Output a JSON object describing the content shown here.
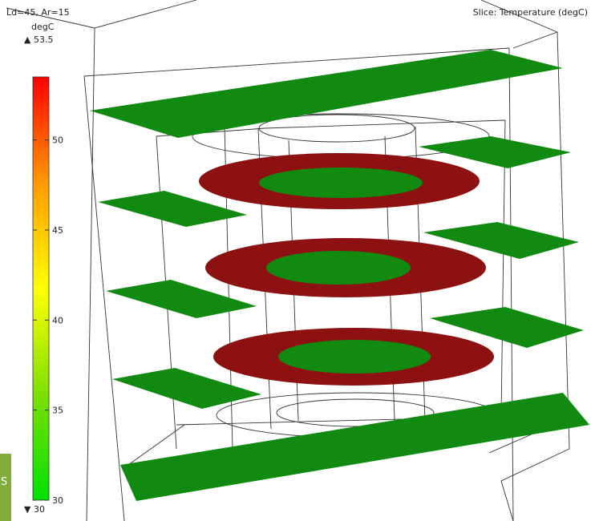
{
  "header": {
    "params": "Ld=45, Ar=15",
    "slice_title": "Slice: Temperature (degC)"
  },
  "colorbar": {
    "unit": "degC",
    "max_label": "▲ 53.5",
    "min_label": "▼ 30",
    "ticks": [
      "50",
      "45",
      "40",
      "35",
      "30"
    ],
    "tick_values": [
      50,
      45,
      40,
      35,
      30
    ],
    "min": 30,
    "max": 53.5,
    "stops": [
      "#00e000",
      "#7de000",
      "#ffff00",
      "#ff9900",
      "#ff0000"
    ]
  },
  "colors": {
    "cool_slice": "#118a11",
    "hot_ring": "#8d1111",
    "wire": "#333333",
    "edge_tab": "#82ad3a"
  },
  "edge_tab": {
    "text": "S"
  },
  "chart_data": {
    "type": "heatmap",
    "title": "Slice: Temperature (degC)",
    "subtitle": "Ld=45, Ar=15",
    "legend": "left",
    "colorbar": {
      "label": "degC",
      "min": 30,
      "max": 53.5,
      "ticks": [
        50,
        45,
        40,
        35,
        30
      ]
    },
    "regions": [
      {
        "name": "Heated rings",
        "temperature": 53.5
      },
      {
        "name": "Surrounding slices",
        "temperature": 30
      }
    ]
  }
}
